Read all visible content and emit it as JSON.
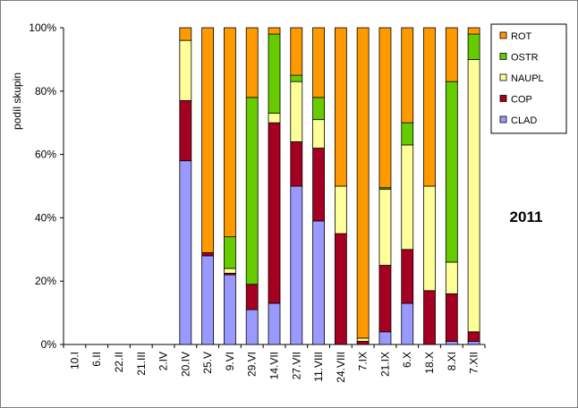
{
  "chart_data": {
    "type": "bar",
    "stacked": true,
    "percent": true,
    "ylabel": "podíl skupin",
    "annotation": "2011",
    "ylim": [
      0,
      100
    ],
    "yticks": [
      "0%",
      "20%",
      "40%",
      "60%",
      "80%",
      "100%"
    ],
    "legend_position": "top-right",
    "grid": false,
    "categories": [
      "10.I",
      "6.II",
      "22.II",
      "21.III",
      "2.IV",
      "20.IV",
      "25.V",
      "9.VI",
      "29.VI",
      "14.VII",
      "27.VII",
      "11.VIII",
      "24.VIII",
      "7.IX",
      "21.IX",
      "6.X",
      "18.X",
      "8.XI",
      "7.XII"
    ],
    "series": [
      {
        "name": "CLAD",
        "color": "#9999ff",
        "values": [
          0,
          0,
          0,
          0,
          0,
          58,
          28,
          22,
          11,
          13,
          50,
          39,
          0,
          0,
          4,
          13,
          0,
          1,
          1
        ]
      },
      {
        "name": "COP",
        "color": "#a50021",
        "values": [
          0,
          0,
          0,
          0,
          0,
          19,
          1,
          0.5,
          8,
          57,
          14,
          23,
          35,
          1,
          21,
          17,
          17,
          15,
          3
        ]
      },
      {
        "name": "NAUPL",
        "color": "#ffff99",
        "values": [
          0,
          0,
          0,
          0,
          0,
          19,
          0,
          1.5,
          0,
          3,
          19,
          9,
          15,
          1,
          24,
          33,
          33,
          10,
          86
        ]
      },
      {
        "name": "OSTR",
        "color": "#66cc00",
        "values": [
          0,
          0,
          0,
          0,
          0,
          0,
          0,
          10,
          59,
          25,
          2,
          7,
          0,
          0,
          0.5,
          7,
          0,
          57,
          8
        ]
      },
      {
        "name": "ROT",
        "color": "#ff9900",
        "values": [
          0,
          0,
          0,
          0,
          0,
          4,
          71,
          66,
          22,
          2,
          15,
          22,
          50,
          98,
          50.5,
          30,
          50,
          17,
          2
        ]
      }
    ],
    "legend_order": [
      "ROT",
      "OSTR",
      "NAUPL",
      "COP",
      "CLAD"
    ]
  }
}
